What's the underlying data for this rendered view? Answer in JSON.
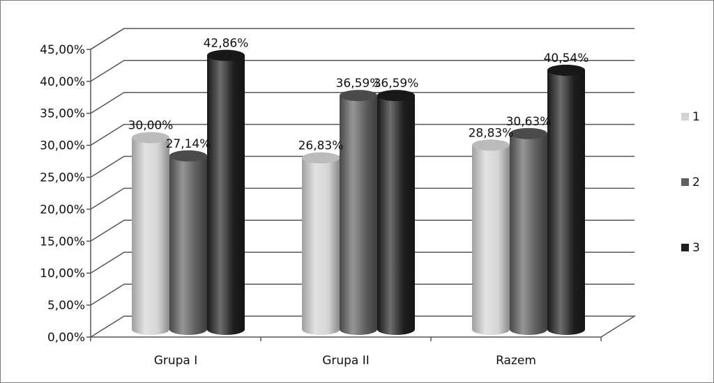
{
  "chart_data": {
    "type": "bar",
    "title": "",
    "xlabel": "",
    "ylabel": "",
    "categories": [
      "Grupa I",
      "Grupa II",
      "Razem"
    ],
    "series": [
      {
        "name": "1",
        "values": [
          30.0,
          26.83,
          28.83
        ],
        "labels": [
          "30,00%",
          "26,83%",
          "28,83%"
        ],
        "color": "#d4d4d4"
      },
      {
        "name": "2",
        "values": [
          27.14,
          36.59,
          30.63
        ],
        "labels": [
          "27,14%",
          "36,59%",
          "30,63%"
        ],
        "color": "#5e5e5e"
      },
      {
        "name": "3",
        "values": [
          42.86,
          36.59,
          40.54
        ],
        "labels": [
          "42,86%",
          "36,59%",
          "40,54%"
        ],
        "color": "#1e1e1e"
      }
    ],
    "ylim": [
      0,
      45
    ],
    "yticks": [
      "0,00%",
      "5,00%",
      "10,00%",
      "15,00%",
      "20,00%",
      "25,00%",
      "30,00%",
      "35,00%",
      "40,00%",
      "45,00%"
    ],
    "grid": true,
    "legend": "right",
    "style": "3d-cylinder"
  }
}
